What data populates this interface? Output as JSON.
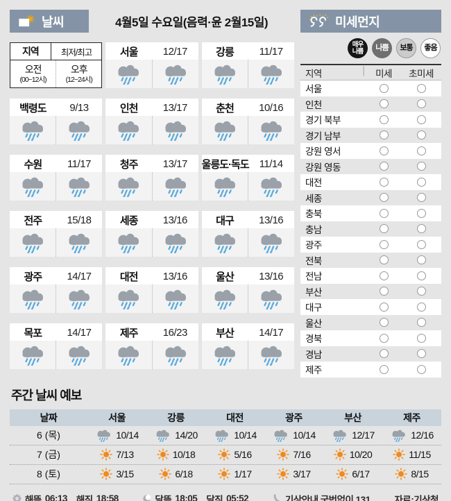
{
  "colors": {
    "header_bar": "#8494a6",
    "page_background": "#e5e5e5",
    "weekly_header_bg": "#c9d3dc",
    "cloud_gray": "#9aa1a9",
    "rain_blue": "#5aaade",
    "sun_orange": "#ee8a1e",
    "badge_very_bad": "#161616",
    "badge_bad": "#6f6f6f",
    "badge_normal": "#cbcbcb",
    "badge_good": "#ffffff"
  },
  "weather": {
    "title": "날씨",
    "date": "4월5일 수요일(음력·윤 2월15일)",
    "legend": {
      "region": "지역",
      "minmax": "최저/최고",
      "am": "오전",
      "am_hours": "(00~12시)",
      "pm": "오후",
      "pm_hours": "(12~24시)"
    },
    "cities": [
      {
        "name": "서울",
        "temp": "12/17",
        "am": "rain",
        "pm": "rain"
      },
      {
        "name": "강릉",
        "temp": "11/17",
        "am": "rain",
        "pm": "rain"
      },
      {
        "name": "백령도",
        "temp": "9/13",
        "am": "rain",
        "pm": "rain"
      },
      {
        "name": "인천",
        "temp": "13/17",
        "am": "rain",
        "pm": "rain"
      },
      {
        "name": "춘천",
        "temp": "10/16",
        "am": "rain",
        "pm": "rain"
      },
      {
        "name": "수원",
        "temp": "11/17",
        "am": "rain",
        "pm": "rain"
      },
      {
        "name": "청주",
        "temp": "13/17",
        "am": "rain",
        "pm": "rain"
      },
      {
        "name": "울릉도·독도",
        "temp": "11/14",
        "am": "rain",
        "pm": "rain"
      },
      {
        "name": "전주",
        "temp": "15/18",
        "am": "rain",
        "pm": "rain"
      },
      {
        "name": "세종",
        "temp": "13/16",
        "am": "rain",
        "pm": "rain"
      },
      {
        "name": "대구",
        "temp": "13/16",
        "am": "rain",
        "pm": "rain"
      },
      {
        "name": "광주",
        "temp": "14/17",
        "am": "rain",
        "pm": "rain"
      },
      {
        "name": "대전",
        "temp": "13/16",
        "am": "rain",
        "pm": "rain"
      },
      {
        "name": "울산",
        "temp": "13/16",
        "am": "rain",
        "pm": "rain"
      },
      {
        "name": "목포",
        "temp": "14/17",
        "am": "rain",
        "pm": "rain"
      },
      {
        "name": "제주",
        "temp": "16/23",
        "am": "rain",
        "pm": "rain"
      },
      {
        "name": "부산",
        "temp": "14/17",
        "am": "rain",
        "pm": "rain"
      }
    ]
  },
  "dust": {
    "title": "미세먼지",
    "levels": [
      {
        "label": "매우\n나쁨",
        "type": "very-bad"
      },
      {
        "label": "나쁨",
        "type": "bad"
      },
      {
        "label": "보통",
        "type": "normal"
      },
      {
        "label": "좋음",
        "type": "good"
      }
    ],
    "columns": {
      "region": "지역",
      "fine": "미세",
      "ultrafine": "초미세"
    },
    "regions": [
      {
        "name": "서울",
        "fine": "empty",
        "ultrafine": "empty"
      },
      {
        "name": "인천",
        "fine": "empty",
        "ultrafine": "empty"
      },
      {
        "name": "경기 북부",
        "fine": "empty",
        "ultrafine": "empty"
      },
      {
        "name": "경기 남부",
        "fine": "empty",
        "ultrafine": "empty"
      },
      {
        "name": "강원 영서",
        "fine": "empty",
        "ultrafine": "empty"
      },
      {
        "name": "강원 영동",
        "fine": "empty",
        "ultrafine": "empty"
      },
      {
        "name": "대전",
        "fine": "empty",
        "ultrafine": "empty"
      },
      {
        "name": "세종",
        "fine": "empty",
        "ultrafine": "empty"
      },
      {
        "name": "충북",
        "fine": "empty",
        "ultrafine": "empty"
      },
      {
        "name": "충남",
        "fine": "empty",
        "ultrafine": "empty"
      },
      {
        "name": "광주",
        "fine": "empty",
        "ultrafine": "empty"
      },
      {
        "name": "전북",
        "fine": "empty",
        "ultrafine": "empty"
      },
      {
        "name": "전남",
        "fine": "empty",
        "ultrafine": "empty"
      },
      {
        "name": "부산",
        "fine": "empty",
        "ultrafine": "empty"
      },
      {
        "name": "대구",
        "fine": "empty",
        "ultrafine": "empty"
      },
      {
        "name": "울산",
        "fine": "empty",
        "ultrafine": "empty"
      },
      {
        "name": "경북",
        "fine": "empty",
        "ultrafine": "empty"
      },
      {
        "name": "경남",
        "fine": "empty",
        "ultrafine": "empty"
      },
      {
        "name": "제주",
        "fine": "empty",
        "ultrafine": "empty"
      }
    ]
  },
  "weekly": {
    "title": "주간 날씨 예보",
    "columns": [
      "날짜",
      "서울",
      "강릉",
      "대전",
      "광주",
      "부산",
      "제주"
    ],
    "rows": [
      {
        "date": "6 (목)",
        "cells": [
          {
            "icon": "rain",
            "temp": "10/14"
          },
          {
            "icon": "rain",
            "temp": "14/20"
          },
          {
            "icon": "rain",
            "temp": "10/14"
          },
          {
            "icon": "rain",
            "temp": "10/14"
          },
          {
            "icon": "rain",
            "temp": "12/17"
          },
          {
            "icon": "rain",
            "temp": "12/16"
          }
        ]
      },
      {
        "date": "7 (금)",
        "cells": [
          {
            "icon": "sun",
            "temp": "7/13"
          },
          {
            "icon": "sun",
            "temp": "10/18"
          },
          {
            "icon": "sun",
            "temp": "5/16"
          },
          {
            "icon": "sun",
            "temp": "7/16"
          },
          {
            "icon": "sun",
            "temp": "10/20"
          },
          {
            "icon": "sun",
            "temp": "11/15"
          }
        ]
      },
      {
        "date": "8 (토)",
        "cells": [
          {
            "icon": "sun",
            "temp": "3/15"
          },
          {
            "icon": "sun",
            "temp": "6/18"
          },
          {
            "icon": "sun",
            "temp": "1/17"
          },
          {
            "icon": "sun",
            "temp": "3/17"
          },
          {
            "icon": "sun",
            "temp": "6/17"
          },
          {
            "icon": "sun",
            "temp": "8/15"
          }
        ]
      }
    ]
  },
  "footer": {
    "sunrise_label": "해뜸",
    "sunrise_time": "06:13",
    "sunset_label": "해짐",
    "sunset_time": "18:58",
    "moonrise_label": "달뜸",
    "moonrise_time": "18:05",
    "moonset_label": "달짐",
    "moonset_time": "05:52",
    "info": "기상안내 국번없이 131",
    "source": "자료:기상청"
  }
}
